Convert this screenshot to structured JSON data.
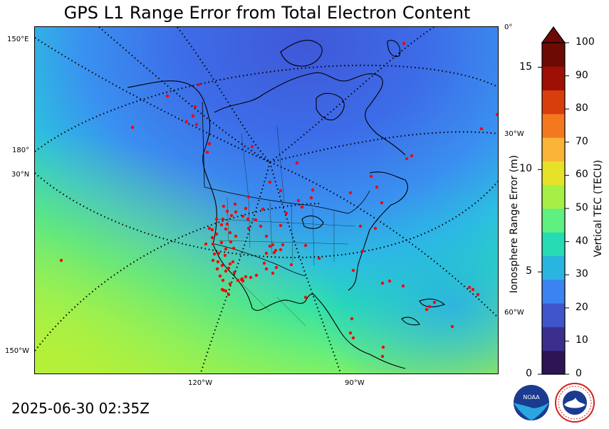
{
  "title": "GPS L1 Range Error from Total Electron Content",
  "timestamp": "2025-06-30 02:35Z",
  "map": {
    "projection": "polar-stereographic",
    "longitude_labels": [
      "150°E",
      "180°",
      "150°W",
      "120°W",
      "90°W",
      "60°W",
      "30°W",
      "0°"
    ],
    "latitude_labels": [
      "30°N"
    ],
    "station_marker_color": "#ff0000"
  },
  "colorbar": {
    "tec_label": "Vertical TEC (TECU)",
    "range_error_label": "Ionosphere Range Error (m)",
    "tec_ticks": [
      "100",
      "90",
      "80",
      "70",
      "60",
      "50",
      "40",
      "30",
      "20",
      "10",
      "0"
    ],
    "range_error_ticks": [
      "15",
      "10",
      "5",
      "0"
    ],
    "extend": "max",
    "colors": [
      "#2d1454",
      "#3a2f8c",
      "#3f55c9",
      "#3a83f0",
      "#2ab4e0",
      "#25dcb4",
      "#5ef080",
      "#a6f046",
      "#e6e22a",
      "#fbb438",
      "#f4781e",
      "#d83d0c",
      "#9e1004",
      "#6e0a04"
    ]
  },
  "logos": {
    "noaa": "NOAA",
    "nws": "NATIONAL WEATHER SERVICE"
  }
}
